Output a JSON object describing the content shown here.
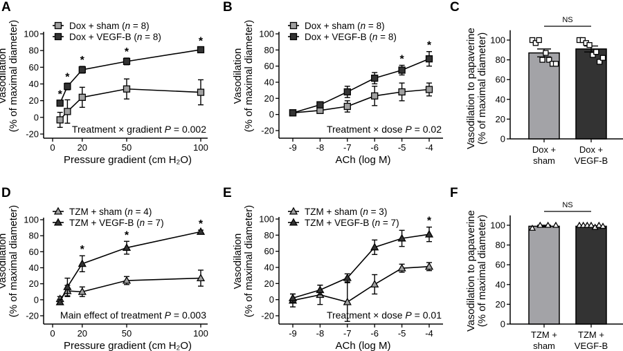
{
  "chart_data": [
    {
      "panel": "A",
      "type": "line",
      "xlabel": "Pressure gradient (cm H₂O)",
      "ylabel": [
        "Vasodilation",
        "(% of maximal diameter)"
      ],
      "xlim": [
        0,
        100
      ],
      "ylim": [
        -20,
        100
      ],
      "xticks": [
        0,
        20,
        50,
        100
      ],
      "yticks": [
        -20,
        0,
        20,
        40,
        60,
        80,
        100
      ],
      "x": [
        5,
        10,
        20,
        50,
        100
      ],
      "series": [
        {
          "name": "Dox + sham",
          "n": "8",
          "marker": "square",
          "color": "#a0a0a0",
          "values": [
            -3,
            7,
            24,
            34,
            30
          ],
          "errors": [
            9,
            14,
            12,
            12,
            15
          ]
        },
        {
          "name": "Dox + VEGF-B",
          "n": "8",
          "marker": "square",
          "color": "#333333",
          "values": [
            17,
            37,
            57,
            67,
            81
          ],
          "errors": [
            3,
            4,
            4,
            4,
            3
          ]
        }
      ],
      "significance_x": [
        5,
        10,
        20,
        50,
        100
      ],
      "significance_mark": "*",
      "annotation": {
        "text": "Treatment × gradient",
        "p": "0.002"
      }
    },
    {
      "panel": "B",
      "type": "line",
      "xlabel": "ACh (log M)",
      "ylabel": [
        "Vasodilation",
        "(% of maximal diameter)"
      ],
      "xlim": [
        -9,
        -4
      ],
      "ylim": [
        -20,
        100
      ],
      "xticks": [
        -9,
        -8,
        -7,
        -6,
        -5,
        -4
      ],
      "yticks": [
        -20,
        0,
        20,
        40,
        60,
        80,
        100
      ],
      "x": [
        -9,
        -8,
        -7,
        -6,
        -5,
        -4
      ],
      "series": [
        {
          "name": "Dox + sham",
          "n": "8",
          "marker": "square",
          "color": "#a0a0a0",
          "values": [
            2,
            5,
            10,
            23,
            28,
            31
          ],
          "errors": [
            1,
            2,
            7,
            12,
            11,
            8
          ]
        },
        {
          "name": "Dox + VEGF-B",
          "n": "8",
          "marker": "square",
          "color": "#333333",
          "values": [
            2,
            12,
            28,
            45,
            55,
            69
          ],
          "errors": [
            1,
            2,
            7,
            7,
            6,
            9
          ]
        }
      ],
      "significance_x": [
        -5,
        -4
      ],
      "significance_mark": "*",
      "annotation": {
        "text": "Treatment × dose",
        "p": "0.02"
      }
    },
    {
      "panel": "C",
      "type": "bar",
      "ylabel": [
        "Vasodilation to papaverine",
        "(% of maximal diameter)"
      ],
      "ylim": [
        0,
        110
      ],
      "yticks": [
        0,
        20,
        40,
        60,
        80,
        100
      ],
      "categories": [
        [
          "Dox +",
          "sham"
        ],
        [
          "Dox +",
          "VEGF-B"
        ]
      ],
      "values": [
        87,
        91
      ],
      "errors": [
        4,
        3
      ],
      "colors": [
        "#a3a3a7",
        "#333333"
      ],
      "point_marker": "square",
      "points": [
        [
          100,
          97,
          100,
          80,
          87,
          80,
          76,
          76
        ],
        [
          100,
          100,
          97,
          95,
          85,
          88,
          78,
          82
        ]
      ],
      "comparison": "NS"
    },
    {
      "panel": "D",
      "type": "line",
      "xlabel": "Pressure gradient (cm H₂O)",
      "ylabel": [
        "Vasodilation",
        "(% of maximal diameter)"
      ],
      "xlim": [
        0,
        100
      ],
      "ylim": [
        -20,
        100
      ],
      "xticks": [
        0,
        20,
        50,
        100
      ],
      "yticks": [
        -20,
        0,
        20,
        40,
        60,
        80,
        100
      ],
      "x": [
        5,
        10,
        20,
        50,
        100
      ],
      "series": [
        {
          "name": "TZM + sham",
          "n": "4",
          "marker": "triangle",
          "color": "#a0a0a0",
          "values": [
            1,
            11,
            10,
            24,
            27
          ],
          "errors": [
            3,
            7,
            6,
            5,
            10
          ]
        },
        {
          "name": "TZM + VEGF-B",
          "n": "7",
          "marker": "triangle",
          "color": "#333333",
          "values": [
            -3,
            16,
            45,
            65,
            85
          ],
          "errors": [
            3,
            11,
            10,
            8,
            2
          ]
        }
      ],
      "significance_x": [
        20,
        50,
        100
      ],
      "significance_mark": "*",
      "annotation": {
        "text": "Main effect of treatment",
        "p": "0.003"
      }
    },
    {
      "panel": "E",
      "type": "line",
      "xlabel": "ACh (log M)",
      "ylabel": [
        "Vasodilation",
        "(% of maximal diameter)"
      ],
      "xlim": [
        -9,
        -4
      ],
      "ylim": [
        -20,
        100
      ],
      "xticks": [
        -9,
        -8,
        -7,
        -6,
        -5,
        -4
      ],
      "yticks": [
        -20,
        0,
        20,
        40,
        60,
        80,
        100
      ],
      "x": [
        -9,
        -8,
        -7,
        -6,
        -5,
        -4
      ],
      "series": [
        {
          "name": "TZM + sham",
          "n": "3",
          "marker": "triangle",
          "color": "#a0a0a0",
          "values": [
            -1,
            6,
            -3,
            19,
            39,
            41
          ],
          "errors": [
            8,
            12,
            24,
            12,
            5,
            5
          ]
        },
        {
          "name": "TZM + VEGF-B",
          "n": "7",
          "marker": "triangle",
          "color": "#333333",
          "values": [
            2,
            12,
            27,
            65,
            76,
            81
          ],
          "errors": [
            5,
            6,
            5,
            9,
            10,
            9
          ]
        }
      ],
      "significance_x": [
        -4
      ],
      "significance_mark": "*",
      "annotation": {
        "text": "Treatment × dose",
        "p": "0.01"
      }
    },
    {
      "panel": "F",
      "type": "bar",
      "ylabel": [
        "Vasodilation to papaverine",
        "(% of maximal diameter)"
      ],
      "ylim": [
        0,
        110
      ],
      "yticks": [
        0,
        20,
        40,
        60,
        80,
        100
      ],
      "categories": [
        [
          "TZM +",
          "sham"
        ],
        [
          "TZM +",
          "VEGF-B"
        ]
      ],
      "values": [
        99,
        99
      ],
      "errors": [
        1,
        0.5
      ],
      "colors": [
        "#a3a3a7",
        "#333333"
      ],
      "point_marker": "triangle",
      "points": [
        [
          97,
          100,
          100,
          100
        ],
        [
          100,
          100,
          100,
          100,
          98,
          100,
          99
        ]
      ],
      "comparison": "NS"
    }
  ]
}
